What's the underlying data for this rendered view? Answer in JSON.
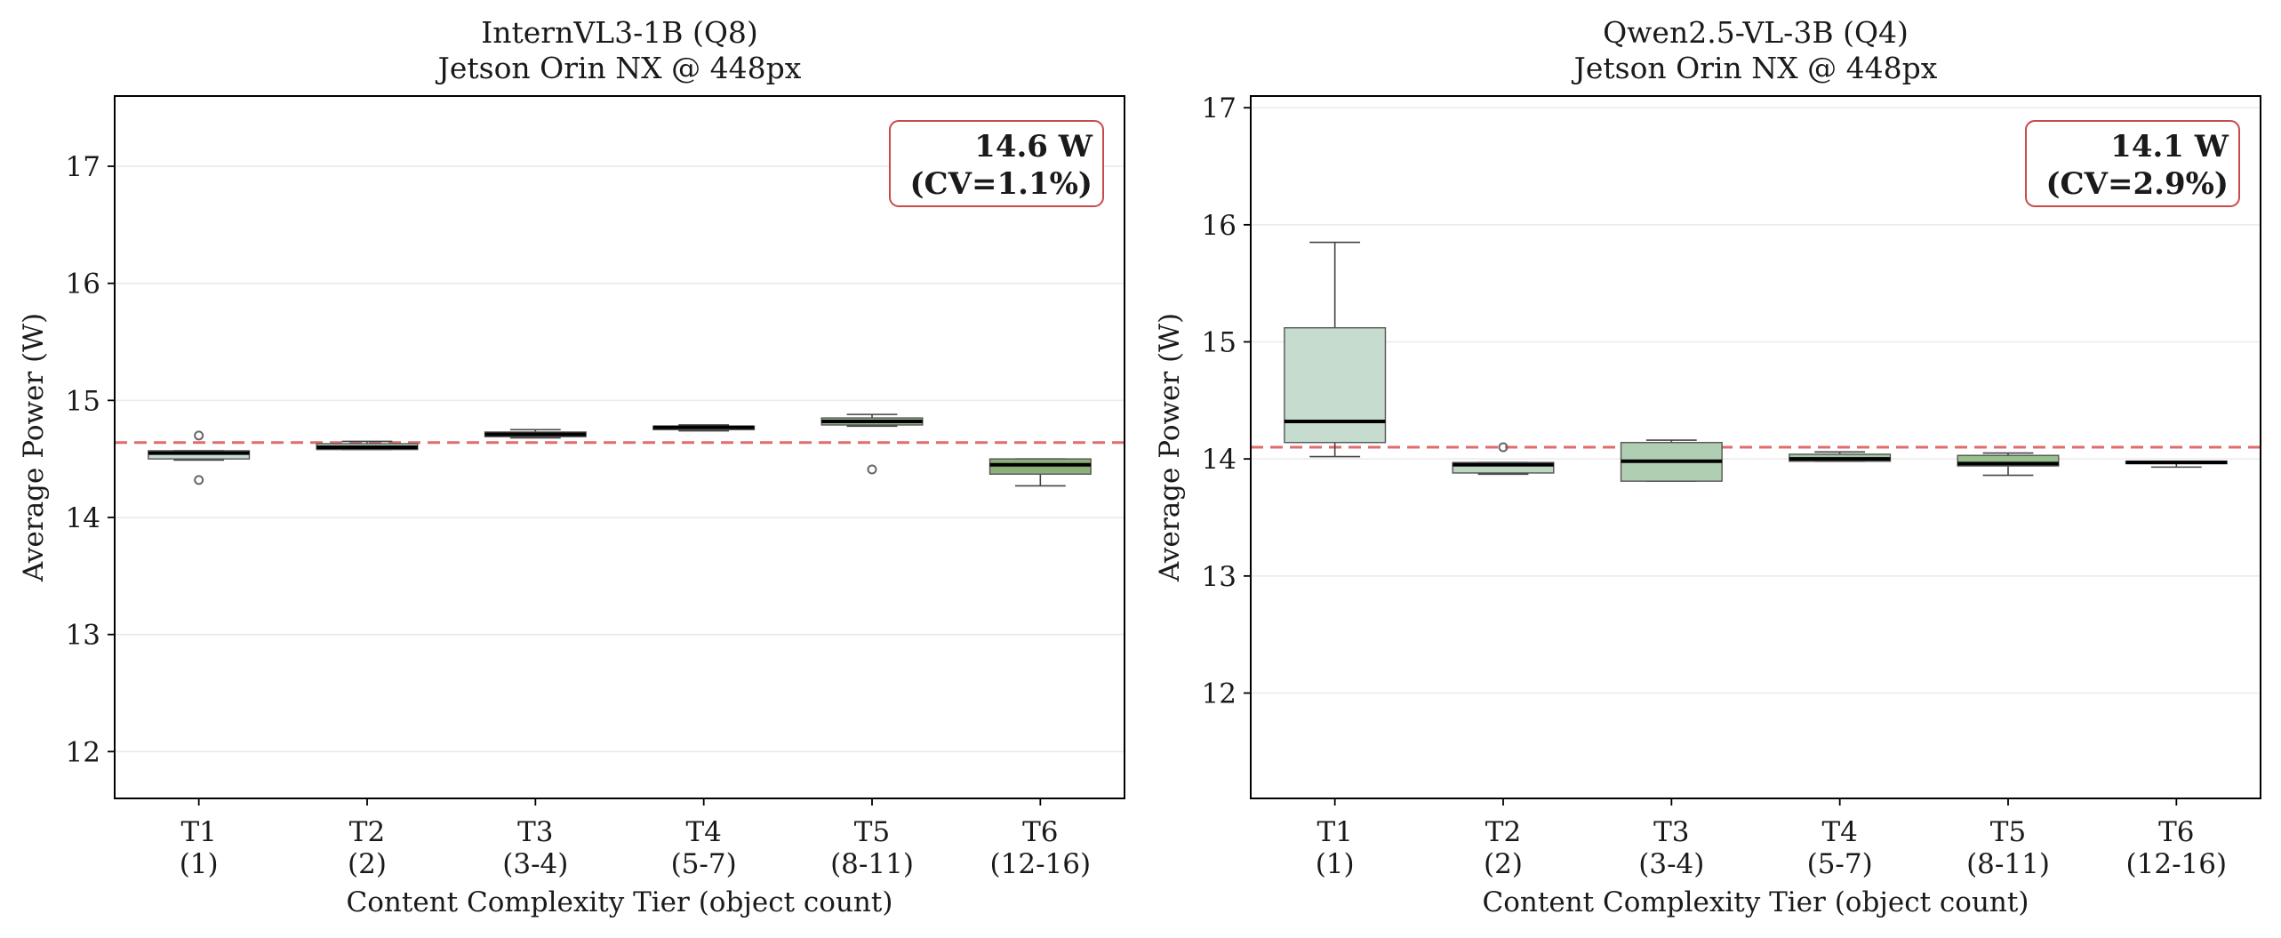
{
  "chart_data": [
    {
      "type": "box",
      "title": "InternVL3-1B (Q8)",
      "subtitle": "Jetson Orin NX @ 448px",
      "xlabel": "Content Complexity Tier (object count)",
      "ylabel": "Average Power (W)",
      "ylim": [
        11.6,
        17.6
      ],
      "yticks": [
        12,
        13,
        14,
        15,
        16,
        17
      ],
      "grid": "horizontal",
      "categories": [
        {
          "tier": "T1",
          "range": "(1)"
        },
        {
          "tier": "T2",
          "range": "(2)"
        },
        {
          "tier": "T3",
          "range": "(3-4)"
        },
        {
          "tier": "T4",
          "range": "(5-7)"
        },
        {
          "tier": "T5",
          "range": "(8-11)"
        },
        {
          "tier": "T6",
          "range": "(12-16)"
        }
      ],
      "boxes": [
        {
          "whisker_low": 14.49,
          "q1": 14.5,
          "median": 14.55,
          "q3": 14.57,
          "whisker_high": 14.57,
          "outliers": [
            14.7,
            14.32
          ],
          "color": "#c5dccf"
        },
        {
          "whisker_low": 14.58,
          "q1": 14.58,
          "median": 14.6,
          "q3": 14.63,
          "whisker_high": 14.65,
          "outliers": [],
          "color": "#bcd6c2"
        },
        {
          "whisker_low": 14.68,
          "q1": 14.69,
          "median": 14.71,
          "q3": 14.73,
          "whisker_high": 14.75,
          "outliers": [],
          "color": "#b0cfb2"
        },
        {
          "whisker_low": 14.74,
          "q1": 14.75,
          "median": 14.77,
          "q3": 14.78,
          "whisker_high": 14.79,
          "outliers": [],
          "color": "#a4c79f"
        },
        {
          "whisker_low": 14.78,
          "q1": 14.79,
          "median": 14.82,
          "q3": 14.85,
          "whisker_high": 14.88,
          "outliers": [
            14.41
          ],
          "color": "#98bf8e"
        },
        {
          "whisker_low": 14.27,
          "q1": 14.37,
          "median": 14.45,
          "q3": 14.5,
          "whisker_high": 14.5,
          "outliers": [],
          "color": "#8db07a"
        }
      ],
      "mean_line": 14.64,
      "annotation": {
        "value": "14.6 W",
        "cv": "(CV=1.1%)"
      }
    },
    {
      "type": "box",
      "title": "Qwen2.5-VL-3B (Q4)",
      "subtitle": "Jetson Orin NX @ 448px",
      "xlabel": "Content Complexity Tier (object count)",
      "ylabel": "Average Power (W)",
      "ylim": [
        11.1,
        17.1
      ],
      "yticks": [
        12,
        13,
        14,
        15,
        16,
        17
      ],
      "grid": "horizontal",
      "categories": [
        {
          "tier": "T1",
          "range": "(1)"
        },
        {
          "tier": "T2",
          "range": "(2)"
        },
        {
          "tier": "T3",
          "range": "(3-4)"
        },
        {
          "tier": "T4",
          "range": "(5-7)"
        },
        {
          "tier": "T5",
          "range": "(8-11)"
        },
        {
          "tier": "T6",
          "range": "(12-16)"
        }
      ],
      "boxes": [
        {
          "whisker_low": 14.02,
          "q1": 14.14,
          "median": 14.32,
          "q3": 15.12,
          "whisker_high": 15.85,
          "outliers": [],
          "color": "#c5dccf"
        },
        {
          "whisker_low": 13.87,
          "q1": 13.88,
          "median": 13.95,
          "q3": 13.97,
          "whisker_high": 13.97,
          "outliers": [
            14.1
          ],
          "color": "#bcd6c2"
        },
        {
          "whisker_low": 13.81,
          "q1": 13.81,
          "median": 13.98,
          "q3": 14.14,
          "whisker_high": 14.16,
          "outliers": [],
          "color": "#b0cfb2"
        },
        {
          "whisker_low": 13.98,
          "q1": 13.98,
          "median": 14.0,
          "q3": 14.04,
          "whisker_high": 14.06,
          "outliers": [],
          "color": "#a4c79f"
        },
        {
          "whisker_low": 13.86,
          "q1": 13.94,
          "median": 13.96,
          "q3": 14.03,
          "whisker_high": 14.05,
          "outliers": [],
          "color": "#98bf8e"
        },
        {
          "whisker_low": 13.93,
          "q1": 13.96,
          "median": 13.97,
          "q3": 13.98,
          "whisker_high": 13.98,
          "outliers": [],
          "color": "#8db07a"
        }
      ],
      "mean_line": 14.1,
      "annotation": {
        "value": "14.1 W",
        "cv": "(CV=2.9%)"
      }
    }
  ]
}
